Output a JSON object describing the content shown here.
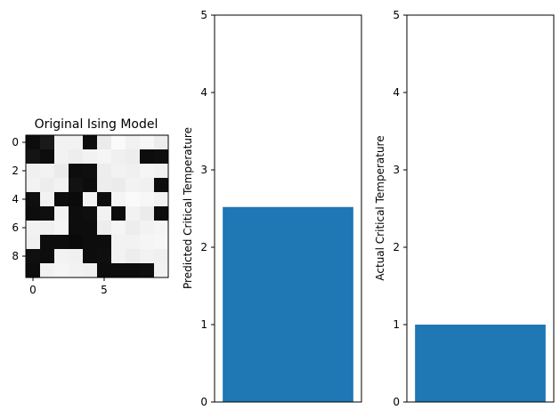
{
  "chart_data": [
    {
      "type": "heatmap",
      "title": "Original Ising Model",
      "colormap": "gray",
      "x_ticks": [
        "0",
        "5"
      ],
      "y_ticks": [
        "0",
        "2",
        "4",
        "6",
        "8"
      ],
      "grid": [
        [
          0.05,
          0.1,
          0.95,
          0.95,
          0.05,
          0.92,
          0.98,
          0.95,
          0.97,
          0.93
        ],
        [
          0.08,
          0.05,
          0.95,
          0.93,
          0.95,
          0.96,
          0.94,
          0.93,
          0.05,
          0.06
        ],
        [
          0.94,
          0.95,
          0.92,
          0.05,
          0.06,
          0.93,
          0.95,
          0.94,
          0.96,
          0.95
        ],
        [
          0.95,
          0.93,
          0.95,
          0.07,
          0.05,
          0.93,
          0.92,
          0.95,
          0.94,
          0.05
        ],
        [
          0.06,
          0.95,
          0.05,
          0.04,
          0.95,
          0.05,
          0.96,
          0.98,
          0.97,
          0.95
        ],
        [
          0.05,
          0.06,
          0.95,
          0.05,
          0.06,
          0.95,
          0.05,
          0.95,
          0.92,
          0.05
        ],
        [
          0.95,
          0.94,
          0.96,
          0.05,
          0.05,
          0.93,
          0.96,
          0.93,
          0.95,
          0.96
        ],
        [
          0.94,
          0.05,
          0.05,
          0.04,
          0.05,
          0.05,
          0.95,
          0.95,
          0.96,
          0.97
        ],
        [
          0.06,
          0.05,
          0.95,
          0.94,
          0.05,
          0.06,
          0.95,
          0.93,
          0.95,
          0.94
        ],
        [
          0.05,
          0.95,
          0.96,
          0.95,
          0.94,
          0.05,
          0.05,
          0.05,
          0.06,
          0.95
        ]
      ]
    },
    {
      "type": "bar",
      "categories": [
        ""
      ],
      "values": [
        2.52
      ],
      "ylabel": "Predicted Critical Temperature",
      "ylim": [
        0,
        5
      ],
      "y_ticks": [
        "0",
        "1",
        "2",
        "3",
        "4",
        "5"
      ],
      "color": "#1f77b4"
    },
    {
      "type": "bar",
      "categories": [
        ""
      ],
      "values": [
        1.0
      ],
      "ylabel": "Actual Critical Temperature",
      "ylim": [
        0,
        5
      ],
      "y_ticks": [
        "0",
        "1",
        "2",
        "3",
        "4",
        "5"
      ],
      "color": "#1f77b4"
    }
  ]
}
